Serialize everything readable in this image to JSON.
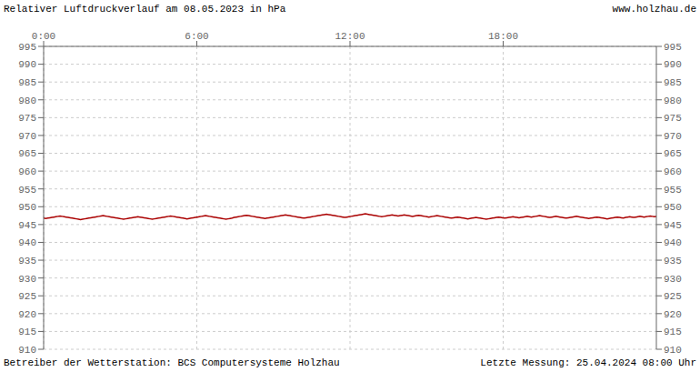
{
  "chart_data": {
    "type": "line",
    "title": "Relativer Luftdruckverlauf am 08.05.2023 in hPa",
    "annotations": [
      "www.holzhau.de",
      "Betreiber der Wetterstation: BCS Computersysteme Holzhau",
      "Letzte Messung: 25.04.2024 08:00 Uhr"
    ],
    "xlim": [
      0,
      1440
    ],
    "xticks": [
      {
        "value": 0,
        "label": "0:00"
      },
      {
        "value": 360,
        "label": "6:00"
      },
      {
        "value": 720,
        "label": "12:00"
      },
      {
        "value": 1080,
        "label": "18:00"
      }
    ],
    "ylim": [
      910,
      995
    ],
    "yticks": [
      910,
      915,
      920,
      925,
      930,
      935,
      940,
      945,
      950,
      955,
      960,
      965,
      970,
      975,
      980,
      985,
      990,
      995
    ],
    "y2lim": [
      910,
      995
    ],
    "y2ticks": [
      910,
      915,
      920,
      925,
      930,
      935,
      940,
      945,
      950,
      955,
      960,
      965,
      970,
      975,
      980,
      985,
      990,
      995
    ],
    "grid": true,
    "x": [
      0,
      4.82,
      9.63,
      14.45,
      19.26,
      24.08,
      28.9,
      33.71,
      38.53,
      43.34,
      48.16,
      52.98,
      57.79,
      62.61,
      67.42,
      72.24,
      77.06,
      81.87,
      86.69,
      91.51,
      96.32,
      101.14,
      105.95,
      110.77,
      115.59,
      120.4,
      125.22,
      130.03,
      134.85,
      139.67,
      144.48,
      149.3,
      154.11,
      158.93,
      163.75,
      168.56,
      173.38,
      178.19,
      183.01,
      187.83,
      192.64,
      197.46,
      202.27,
      207.09,
      211.91,
      216.72,
      221.54,
      226.35,
      231.17,
      235.99,
      240.8,
      245.62,
      250.43,
      255.25,
      260.07,
      264.88,
      269.7,
      274.52,
      279.33,
      284.15,
      288.96,
      293.78,
      298.6,
      303.41,
      308.23,
      313.04,
      317.86,
      322.68,
      327.49,
      332.31,
      337.12,
      341.94,
      346.76,
      351.57,
      356.39,
      361.2,
      366.02,
      370.84,
      375.65,
      380.47,
      385.28,
      390.1,
      394.92,
      399.73,
      404.55,
      409.36,
      414.18,
      419.0,
      423.81,
      428.63,
      433.44,
      438.26,
      443.08,
      447.89,
      452.71,
      457.53,
      462.34,
      467.16,
      471.97,
      476.79,
      481.61,
      486.42,
      491.24,
      496.05,
      500.87,
      505.69,
      510.5,
      515.32,
      520.13,
      524.95,
      529.77,
      534.58,
      539.4,
      544.21,
      549.03,
      553.85,
      558.66,
      563.48,
      568.29,
      573.11,
      577.93,
      582.74,
      587.56,
      592.37,
      597.19,
      602.01,
      606.82,
      611.64,
      616.45,
      621.27,
      626.09,
      630.9,
      635.72,
      640.54,
      645.35,
      650.17,
      654.98,
      659.8,
      664.62,
      669.43,
      674.25,
      679.06,
      683.88,
      688.7,
      693.51,
      698.33,
      703.14,
      707.96,
      712.78,
      717.59,
      722.41,
      727.22,
      732.04,
      736.86,
      741.67,
      746.49,
      751.3,
      756.12,
      760.94,
      765.75,
      770.57,
      775.38,
      780.2,
      785.02,
      789.83,
      794.65,
      799.46,
      804.28,
      809.1,
      813.91,
      818.73,
      823.55,
      828.36,
      833.18,
      837.99,
      842.81,
      847.63,
      852.44,
      857.26,
      862.07,
      866.89,
      871.71,
      876.52,
      881.34,
      886.15,
      890.97,
      895.79,
      900.6,
      905.42,
      910.23,
      915.05,
      919.87,
      924.68,
      929.5,
      934.31,
      939.13,
      943.95,
      948.76,
      953.58,
      958.39,
      963.21,
      968.03,
      972.84,
      977.66,
      982.47,
      987.29,
      992.11,
      996.92,
      1001.74,
      1006.56,
      1011.37,
      1016.19,
      1021.0,
      1025.82,
      1030.64,
      1035.45,
      1040.27,
      1045.08,
      1049.9,
      1054.72,
      1059.53,
      1064.35,
      1069.16,
      1073.98,
      1078.8,
      1083.61,
      1088.43,
      1093.24,
      1098.06,
      1102.88,
      1107.69,
      1112.51,
      1117.32,
      1122.14,
      1126.96,
      1131.77,
      1136.59,
      1141.4,
      1146.22,
      1151.04,
      1155.85,
      1160.67,
      1165.48,
      1170.3,
      1175.12,
      1179.93,
      1184.75,
      1189.57,
      1194.38,
      1199.2,
      1204.01,
      1208.83,
      1213.65,
      1218.46,
      1223.28,
      1228.09,
      1232.91,
      1237.73,
      1242.54,
      1247.36,
      1252.17,
      1256.99,
      1261.81,
      1266.62,
      1271.44,
      1276.25,
      1281.07,
      1285.89,
      1290.7,
      1295.52,
      1300.33,
      1305.15,
      1309.97,
      1314.78,
      1319.6,
      1324.41,
      1329.23,
      1334.05,
      1338.86,
      1343.68,
      1348.49,
      1353.31,
      1358.13,
      1362.94,
      1367.76,
      1372.58,
      1377.39,
      1382.21,
      1387.02,
      1391.84,
      1396.66,
      1401.47,
      1406.29,
      1411.1,
      1415.92,
      1420.74,
      1425.55,
      1430.37,
      1435.18,
      1440
    ],
    "series": [
      {
        "color": "#aa0000",
        "values": [
          946.8,
          946.7,
          946.8,
          946.9,
          947.0,
          947.1,
          947.2,
          947.3,
          947.4,
          947.3,
          947.2,
          947.1,
          947.0,
          946.9,
          946.8,
          946.7,
          946.6,
          946.5,
          946.4,
          946.5,
          946.6,
          946.7,
          946.8,
          946.9,
          947.0,
          947.1,
          947.2,
          947.3,
          947.4,
          947.5,
          947.4,
          947.3,
          947.2,
          947.1,
          947.0,
          946.9,
          946.8,
          946.7,
          946.6,
          946.5,
          946.6,
          946.7,
          946.8,
          946.9,
          947.0,
          947.1,
          947.2,
          947.1,
          947.0,
          946.9,
          946.8,
          946.7,
          946.6,
          946.5,
          946.6,
          946.7,
          946.8,
          946.9,
          947.0,
          947.1,
          947.2,
          947.3,
          947.4,
          947.3,
          947.2,
          947.1,
          947.0,
          946.9,
          946.8,
          946.7,
          946.6,
          946.7,
          946.8,
          946.9,
          947.0,
          947.1,
          947.2,
          947.3,
          947.4,
          947.5,
          947.4,
          947.3,
          947.2,
          947.1,
          947.0,
          946.9,
          946.8,
          946.7,
          946.6,
          946.5,
          946.6,
          946.7,
          946.8,
          947.0,
          947.1,
          947.2,
          947.3,
          947.4,
          947.5,
          947.6,
          947.5,
          947.4,
          947.3,
          947.2,
          947.1,
          947.0,
          946.9,
          946.8,
          946.7,
          946.8,
          946.9,
          947.0,
          947.1,
          947.2,
          947.3,
          947.4,
          947.5,
          947.6,
          947.7,
          947.6,
          947.5,
          947.4,
          947.3,
          947.2,
          947.1,
          947.0,
          946.9,
          946.8,
          946.9,
          947.0,
          947.1,
          947.2,
          947.3,
          947.4,
          947.5,
          947.6,
          947.7,
          947.8,
          947.9,
          947.8,
          947.7,
          947.6,
          947.5,
          947.4,
          947.3,
          947.2,
          947.1,
          947.0,
          947.1,
          947.2,
          947.3,
          947.4,
          947.5,
          947.6,
          947.7,
          947.8,
          947.9,
          948.0,
          947.9,
          947.8,
          947.7,
          947.6,
          947.5,
          947.4,
          947.3,
          947.2,
          947.3,
          947.4,
          947.5,
          947.6,
          947.7,
          947.6,
          947.5,
          947.4,
          947.5,
          947.6,
          947.7,
          947.6,
          947.5,
          947.4,
          947.3,
          947.4,
          947.5,
          947.6,
          947.5,
          947.4,
          947.3,
          947.2,
          947.1,
          947.2,
          947.3,
          947.4,
          947.5,
          947.4,
          947.3,
          947.2,
          947.1,
          947.0,
          946.9,
          946.8,
          946.9,
          947.0,
          947.1,
          947.0,
          946.9,
          946.8,
          946.7,
          946.6,
          946.7,
          946.8,
          946.9,
          947.0,
          946.9,
          946.8,
          946.7,
          946.6,
          946.5,
          946.6,
          946.7,
          946.8,
          946.9,
          947.0,
          947.1,
          947.0,
          946.9,
          946.8,
          946.9,
          947.0,
          947.1,
          947.2,
          947.1,
          947.0,
          946.9,
          947.0,
          947.1,
          947.2,
          947.3,
          947.2,
          947.1,
          947.2,
          947.3,
          947.4,
          947.5,
          947.4,
          947.3,
          947.2,
          947.1,
          947.0,
          947.1,
          947.2,
          947.3,
          947.2,
          947.1,
          947.0,
          946.9,
          946.8,
          946.9,
          947.0,
          947.1,
          947.2,
          947.3,
          947.2,
          947.1,
          947.0,
          946.9,
          946.8,
          946.7,
          946.8,
          946.9,
          947.0,
          947.1,
          947.0,
          946.9,
          946.8,
          946.7,
          946.6,
          946.7,
          946.8,
          946.9,
          947.0,
          947.1,
          947.0,
          946.9,
          946.8,
          947.0,
          947.1,
          947.2,
          947.1,
          947.0,
          947.1,
          947.2,
          947.3,
          947.2,
          947.1,
          947.2,
          947.3,
          947.4,
          947.3,
          947.2,
          947.3
        ]
      }
    ]
  }
}
